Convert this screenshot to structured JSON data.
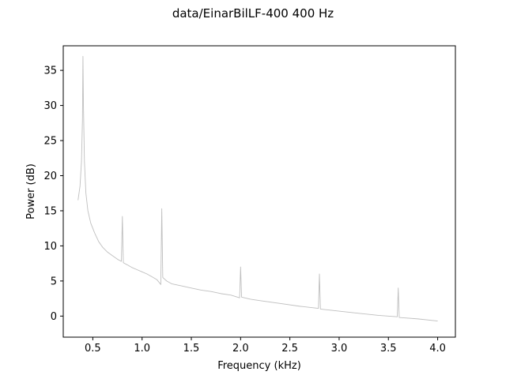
{
  "chart_data": {
    "type": "line",
    "title": "data/EinarBilLF-400   400 Hz",
    "xlabel": "Frequency (kHz)",
    "ylabel": "Power (dB)",
    "xlim": [
      0.2,
      4.18
    ],
    "ylim": [
      -3.0,
      38.5
    ],
    "xticks": [
      0.5,
      1.0,
      1.5,
      2.0,
      2.5,
      3.0,
      3.5,
      4.0
    ],
    "xtick_labels": [
      "0.5",
      "1.0",
      "1.5",
      "2.0",
      "2.5",
      "3.0",
      "3.5",
      "4.0"
    ],
    "yticks": [
      0,
      5,
      10,
      15,
      20,
      25,
      30,
      35
    ],
    "ytick_labels": [
      "0",
      "5",
      "10",
      "15",
      "20",
      "25",
      "30",
      "35"
    ],
    "grid": false,
    "legend": "none",
    "series": [
      {
        "color": "#bfbfbf",
        "x": [
          0.35,
          0.37,
          0.385,
          0.395,
          0.4,
          0.405,
          0.415,
          0.43,
          0.45,
          0.48,
          0.52,
          0.56,
          0.6,
          0.65,
          0.7,
          0.75,
          0.79,
          0.8,
          0.81,
          0.85,
          0.9,
          0.95,
          1.0,
          1.05,
          1.1,
          1.15,
          1.19,
          1.2,
          1.21,
          1.25,
          1.3,
          1.4,
          1.5,
          1.6,
          1.7,
          1.8,
          1.9,
          1.99,
          2.0,
          2.01,
          2.1,
          2.2,
          2.4,
          2.6,
          2.79,
          2.8,
          2.81,
          3.0,
          3.2,
          3.4,
          3.59,
          3.6,
          3.61,
          3.8,
          4.0
        ],
        "y": [
          16.5,
          18.5,
          22.0,
          28.0,
          37.0,
          30.0,
          22.0,
          17.5,
          15.0,
          13.2,
          11.8,
          10.6,
          9.8,
          9.1,
          8.6,
          8.1,
          7.8,
          14.2,
          7.6,
          7.3,
          6.9,
          6.6,
          6.3,
          6.0,
          5.6,
          5.2,
          4.5,
          15.3,
          5.5,
          5.0,
          4.6,
          4.3,
          4.0,
          3.7,
          3.5,
          3.2,
          3.0,
          2.6,
          7.0,
          2.7,
          2.4,
          2.2,
          1.8,
          1.4,
          1.1,
          6.0,
          1.0,
          0.7,
          0.4,
          0.1,
          -0.1,
          4.0,
          -0.2,
          -0.4,
          -0.7
        ]
      }
    ]
  }
}
